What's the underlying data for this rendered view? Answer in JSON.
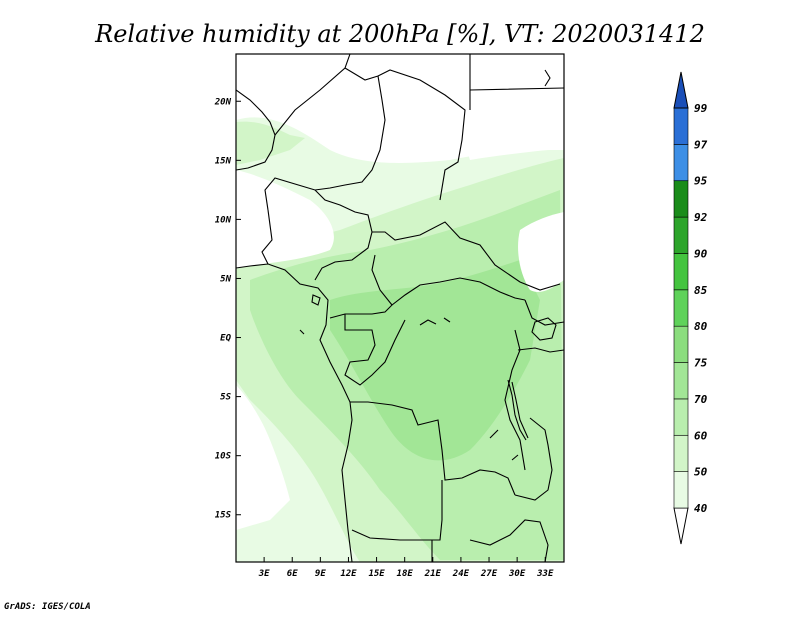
{
  "title": "Relative humidity at 200hPa [%], VT: 2020031412",
  "credit": "GrADS: IGES/COLA",
  "map": {
    "lat_range": [
      -19,
      24
    ],
    "lon_range": [
      0,
      35
    ],
    "lat_ticks": [
      "20N",
      "15N",
      "10N",
      "5N",
      "EQ",
      "5S",
      "10S",
      "15S"
    ],
    "lat_values": [
      20,
      15,
      10,
      5,
      0,
      -5,
      -10,
      -15
    ],
    "lon_ticks": [
      "3E",
      "6E",
      "9E",
      "12E",
      "15E",
      "18E",
      "21E",
      "24E",
      "27E",
      "30E",
      "33E"
    ],
    "lon_values": [
      3,
      6,
      9,
      12,
      15,
      18,
      21,
      24,
      27,
      30,
      33
    ]
  },
  "colorbar": {
    "levels": [
      "40",
      "50",
      "60",
      "70",
      "75",
      "80",
      "85",
      "90",
      "92",
      "95",
      "97",
      "99"
    ],
    "colors": {
      "below_40": "#ffffff",
      "40_50": "#e8fbe4",
      "50_60": "#d2f5c8",
      "60_70": "#b9eeae",
      "70_75": "#a2e696",
      "75_80": "#8bdd7e",
      "80_85": "#5fd25a",
      "85_90": "#44c43f",
      "90_92": "#2da52b",
      "92_95": "#1a8c1a",
      "95_97": "#3d8fe6",
      "97_99": "#2a6fd6",
      "above_99": "#1a4fb8"
    }
  }
}
